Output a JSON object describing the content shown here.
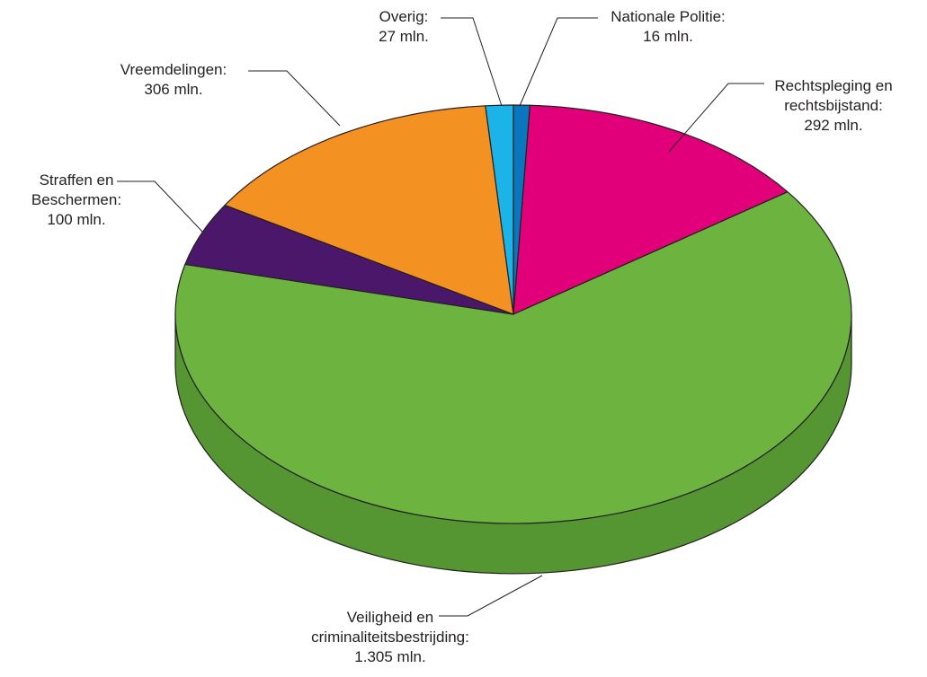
{
  "chart_data": {
    "type": "pie",
    "style": "3d",
    "title": "",
    "unit": "mln.",
    "categories": [
      "Nationale Politie",
      "Rechtspleging en rechtsbijstand",
      "Veiligheid en criminaliteitsbestrijding",
      "Straffen en Beschermen",
      "Vreemdelingen",
      "Overig"
    ],
    "values": [
      16,
      292,
      1305,
      100,
      306,
      27
    ],
    "colors": [
      "#0a76be",
      "#e2007a",
      "#6db33f",
      "#4b176b",
      "#f39122",
      "#1cb4e8"
    ],
    "side_colors": [
      "#085e99",
      "#b50062",
      "#559532",
      "#3a1154",
      "#c97517",
      "#1690bb"
    ],
    "labels": [
      {
        "lines": [
          "Nationale Politie:",
          "16 mln."
        ]
      },
      {
        "lines": [
          "Rechtspleging en",
          "rechtsbijstand:",
          "292 mln."
        ]
      },
      {
        "lines": [
          "Veiligheid en",
          "criminaliteitsbestrijding:",
          "1.305 mln."
        ]
      },
      {
        "lines": [
          "Straffen en",
          "Beschermen:",
          "100 mln."
        ]
      },
      {
        "lines": [
          "Vreemdelingen:",
          "306 mln."
        ]
      },
      {
        "lines": [
          "Overig:",
          "27 mln."
        ]
      }
    ]
  }
}
